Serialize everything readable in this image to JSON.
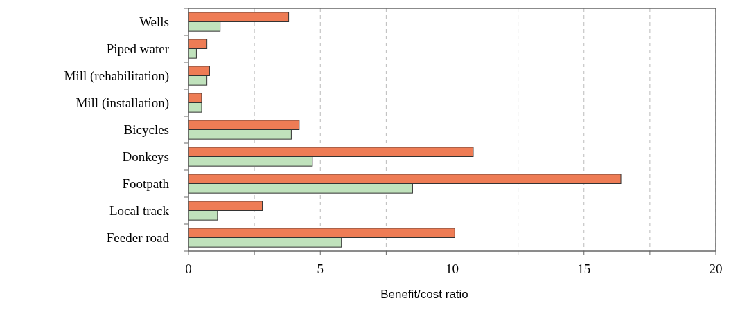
{
  "chart_data": {
    "type": "bar",
    "orientation": "horizontal",
    "xlabel": "Benefit/cost ratio",
    "categories": [
      "Wells",
      "Piped water",
      "Mill (rehabilitation)",
      "Mill (installation)",
      "Bicycles",
      "Donkeys",
      "Footpath",
      "Local track",
      "Feeder road"
    ],
    "series": [
      {
        "color": "#ee7c55",
        "values": [
          3.8,
          0.7,
          0.8,
          0.5,
          4.2,
          10.8,
          16.4,
          2.8,
          10.1
        ]
      },
      {
        "color": "#c0e2bc",
        "values": [
          1.2,
          0.3,
          0.7,
          0.5,
          3.9,
          4.7,
          8.5,
          1.1,
          5.8
        ]
      }
    ],
    "xlim": [
      0,
      20
    ],
    "xticks": [
      0,
      {
        "value": 2.5,
        "label": null
      },
      5,
      {
        "value": 7.5,
        "label": null
      },
      10,
      {
        "value": 12.5,
        "label": null
      },
      15,
      {
        "value": 17.5,
        "label": null
      },
      20
    ],
    "grid": "x"
  }
}
